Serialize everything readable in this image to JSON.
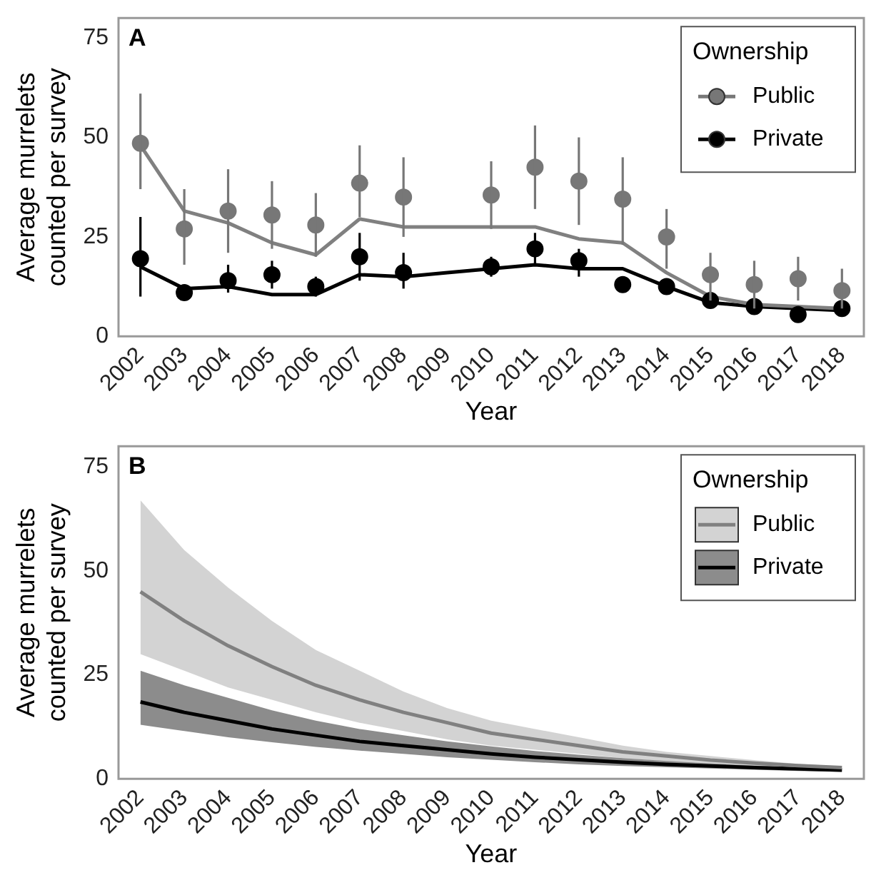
{
  "chart_data": [
    {
      "type": "line",
      "xlabel": "Year",
      "ylabel": "Average murrelets counted per survey",
      "legend_title": "Ownership",
      "legend": "top right",
      "grid": false,
      "annotations": [
        "A"
      ],
      "ylim": [
        0,
        80
      ],
      "yticks": [
        0,
        25,
        50,
        75
      ],
      "categories": [
        "2002",
        "2003",
        "2004",
        "2005",
        "2006",
        "2007",
        "2008",
        "2009",
        "2010",
        "2011",
        "2012",
        "2013",
        "2014",
        "2015",
        "2016",
        "2017",
        "2018"
      ],
      "series": [
        {
          "name": "Public",
          "type": "scatter",
          "marker": "circle",
          "color": "#777777",
          "values": [
            48.5,
            27,
            31.5,
            30.5,
            28,
            38.5,
            35,
            null,
            35.5,
            42.5,
            39,
            34.5,
            25,
            15.5,
            13,
            14.5,
            11.5
          ],
          "errors": [
            [
              37,
              61
            ],
            [
              18,
              37
            ],
            [
              21,
              42
            ],
            [
              22,
              39
            ],
            [
              20,
              36
            ],
            [
              30,
              48
            ],
            [
              25,
              45
            ],
            null,
            [
              27,
              44
            ],
            [
              32,
              53
            ],
            [
              28,
              50
            ],
            [
              23,
              45
            ],
            [
              17,
              32
            ],
            [
              9,
              21
            ],
            [
              7,
              19
            ],
            [
              9,
              20
            ],
            [
              7,
              17
            ]
          ]
        },
        {
          "name": "Private",
          "type": "scatter",
          "marker": "circle",
          "color": "#000000",
          "values": [
            19.5,
            11,
            14,
            15.5,
            12.5,
            20,
            16,
            null,
            17.5,
            22,
            19,
            13,
            12.5,
            9,
            7.5,
            5.5,
            7
          ],
          "errors": [
            [
              10,
              30
            ],
            null,
            [
              11,
              18
            ],
            [
              12,
              19
            ],
            [
              10,
              15
            ],
            [
              14,
              26
            ],
            [
              12,
              21
            ],
            null,
            [
              15,
              20
            ],
            [
              18,
              26
            ],
            [
              15,
              22
            ],
            null,
            null,
            null,
            null,
            null,
            null
          ]
        },
        {
          "type": "line",
          "color": "#808080",
          "values": [
            48,
            31.5,
            28.5,
            23.5,
            20.5,
            29.5,
            27.5,
            27.5,
            27.5,
            27.5,
            24.5,
            23.5,
            16,
            10,
            8,
            7.5,
            7
          ]
        },
        {
          "type": "line",
          "color": "#000000",
          "values": [
            17.5,
            12,
            12.5,
            10.5,
            10.5,
            15.5,
            15,
            16,
            17,
            18,
            17,
            17,
            12.5,
            8.5,
            7.5,
            7,
            6.5
          ]
        }
      ]
    },
    {
      "type": "line",
      "xlabel": "Year",
      "ylabel": "Average murrelets counted per survey",
      "legend_title": "Ownership",
      "legend": "top right",
      "grid": false,
      "annotations": [
        "B"
      ],
      "ylim": [
        0,
        80
      ],
      "yticks": [
        0,
        25,
        50,
        75
      ],
      "categories": [
        "2002",
        "2003",
        "2004",
        "2005",
        "2006",
        "2007",
        "2008",
        "2009",
        "2010",
        "2011",
        "2012",
        "2013",
        "2014",
        "2015",
        "2016",
        "2017",
        "2018"
      ],
      "series": [
        {
          "name": "Public",
          "color": "#808080",
          "values": [
            45,
            38,
            32,
            27,
            22.5,
            19,
            16,
            13.5,
            11,
            9.5,
            8,
            6.5,
            5.5,
            4.5,
            3.8,
            3.2,
            2.7
          ],
          "upper": [
            67,
            55,
            46,
            38,
            31,
            26,
            21,
            17,
            14,
            12,
            10,
            8,
            6.5,
            5.5,
            4.5,
            3.6,
            3
          ],
          "lower": [
            30,
            26,
            22,
            19,
            16,
            13.5,
            11.5,
            9.5,
            8,
            7,
            6,
            5,
            4.2,
            3.5,
            3,
            2.5,
            2.2
          ]
        },
        {
          "name": "Private",
          "color": "#000000",
          "values": [
            18.5,
            16,
            14,
            12,
            10.5,
            9,
            8,
            7,
            6,
            5.2,
            4.6,
            4,
            3.5,
            3.1,
            2.7,
            2.4,
            2.1
          ],
          "upper": [
            26,
            22.5,
            19.5,
            16.5,
            14,
            12,
            10.5,
            9,
            7.8,
            6.7,
            5.8,
            5,
            4.3,
            3.7,
            3.2,
            2.8,
            2.4
          ],
          "lower": [
            13,
            11.5,
            10,
            8.8,
            7.7,
            6.8,
            6,
            5.2,
            4.6,
            4,
            3.5,
            3.1,
            2.8,
            2.5,
            2.2,
            1.9,
            1.7
          ]
        }
      ]
    }
  ]
}
